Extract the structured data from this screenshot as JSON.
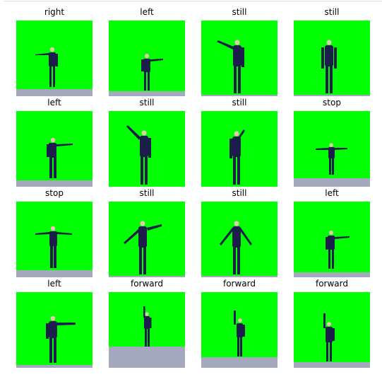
{
  "colors": {
    "screen": "#00ff00",
    "floor": "#a5a9bd",
    "clothes": "#1b1d4a",
    "skin": "#e7c7b2",
    "title_text": "#000000"
  },
  "frames": [
    {
      "label": "right",
      "pose": "arm-left"
    },
    {
      "label": "left",
      "pose": "arm-right"
    },
    {
      "label": "still",
      "pose": "arm-up-left"
    },
    {
      "label": "still",
      "pose": "arms-down"
    },
    {
      "label": "left",
      "pose": "arm-right"
    },
    {
      "label": "still",
      "pose": "arm-up-left"
    },
    {
      "label": "still",
      "pose": "arm-up-right"
    },
    {
      "label": "stop",
      "pose": "arms-out"
    },
    {
      "label": "stop",
      "pose": "arms-out"
    },
    {
      "label": "still",
      "pose": "arms-wave"
    },
    {
      "label": "still",
      "pose": "arms-down-out"
    },
    {
      "label": "left",
      "pose": "arm-right"
    },
    {
      "label": "left",
      "pose": "arm-right"
    },
    {
      "label": "forward",
      "pose": "arm-up"
    },
    {
      "label": "forward",
      "pose": "arm-up"
    },
    {
      "label": "forward",
      "pose": "arm-up"
    }
  ]
}
